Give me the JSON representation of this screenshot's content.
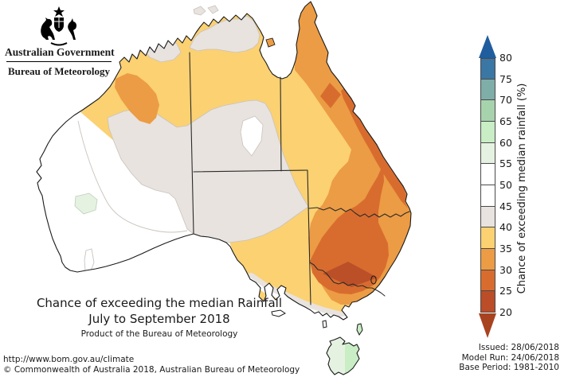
{
  "header": {
    "government": "Australian Government",
    "bureau": "Bureau of Meteorology"
  },
  "map_title": {
    "line1": "Chance of exceeding the median Rainfall",
    "line2": "July to September 2018",
    "line3": "Product of the Bureau of Meteorology"
  },
  "footer": {
    "url": "http://www.bom.gov.au/climate",
    "copyright": "© Commonwealth of Australia 2018, Australian Bureau of Meteorology"
  },
  "issue_info": {
    "issued": "Issued: 28/06/2018",
    "model_run": "Model Run: 24/06/2018",
    "base_period": "Base Period: 1981-2010"
  },
  "legend": {
    "title": "Chance of exceeding median rainfall (%)",
    "tick_labels": [
      "80",
      "75",
      "70",
      "65",
      "60",
      "55",
      "50",
      "45",
      "40",
      "35",
      "30",
      "25",
      "20"
    ],
    "box_colors": [
      "#3a77a5",
      "#7fada8",
      "#a7d3ac",
      "#c9edc5",
      "#e6f2e1",
      "#ffffff",
      "#ffffff",
      "#e8e3df",
      "#fbd172",
      "#ec9c44",
      "#d86c2e",
      "#bb4d28"
    ],
    "arrow_top_color": "#205d9e",
    "arrow_bottom_color": "#a8431f"
  },
  "palette": {
    "land": "#ffffff",
    "band-20-25": "#ba4f28",
    "band-25-30": "#d86c2e",
    "band-30-35": "#ec9c44",
    "band-35-40": "#fbd172",
    "band-40-45": "#e8e3df",
    "band-45-50": "#ffffff",
    "band-55-60": "#e6f2e1",
    "band-60-65": "#c9edc5",
    "coast": "#1a1a1a",
    "border": "#2b2b2b",
    "contour": "#c9c3bd"
  }
}
